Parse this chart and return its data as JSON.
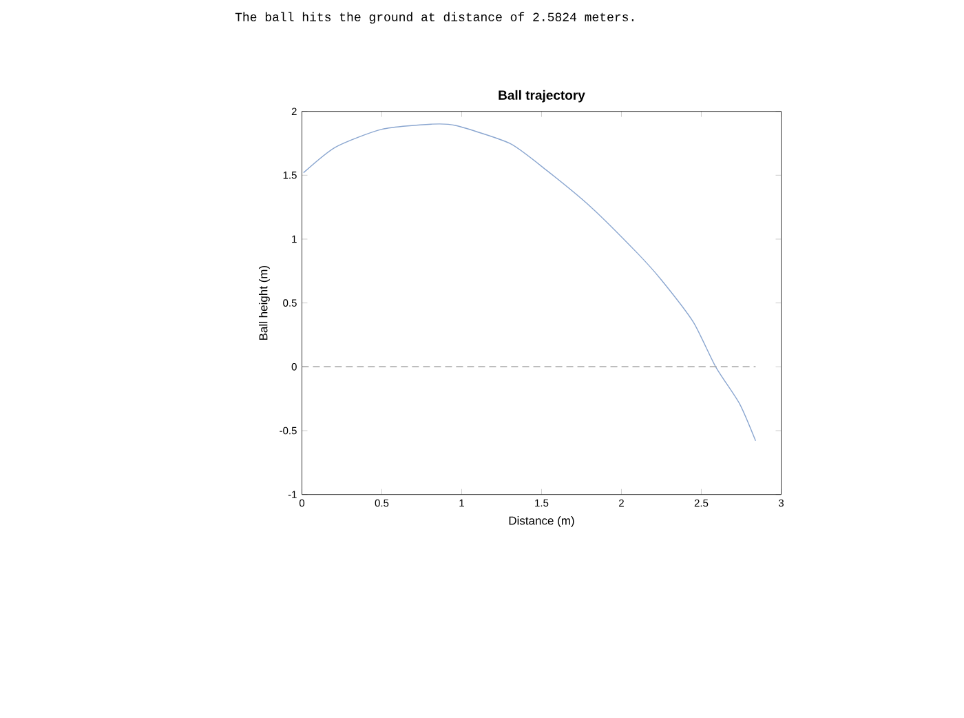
{
  "chart_data": {
    "type": "line",
    "title": "Ball trajectory",
    "xlabel": "Distance (m)",
    "ylabel": "Ball height (m)",
    "annotations": [
      "The ball hits the ground at distance of 2.5824 meters."
    ],
    "xlim": [
      0,
      3
    ],
    "ylim": [
      -1,
      2
    ],
    "xticks": [
      0,
      0.5,
      1,
      1.5,
      2,
      2.5,
      3
    ],
    "yticks": [
      -1,
      -0.5,
      0,
      0.5,
      1,
      1.5,
      2
    ],
    "grid": false,
    "series": [
      {
        "color": "#8aa6d0",
        "line_style": "solid",
        "x": [
          0.01,
          0.21,
          0.5,
          0.81,
          0.96,
          1.3,
          1.53,
          1.81,
          2.1,
          2.25,
          2.45,
          2.59,
          2.74,
          2.84
        ],
        "values": [
          1.52,
          1.72,
          1.86,
          1.9,
          1.89,
          1.75,
          1.54,
          1.25,
          0.89,
          0.68,
          0.35,
          0,
          -0.29,
          -0.58
        ]
      },
      {
        "color": "#a0a0a0",
        "line_style": "dashed",
        "x": [
          0,
          2.84
        ],
        "values": [
          0,
          0
        ]
      }
    ]
  }
}
